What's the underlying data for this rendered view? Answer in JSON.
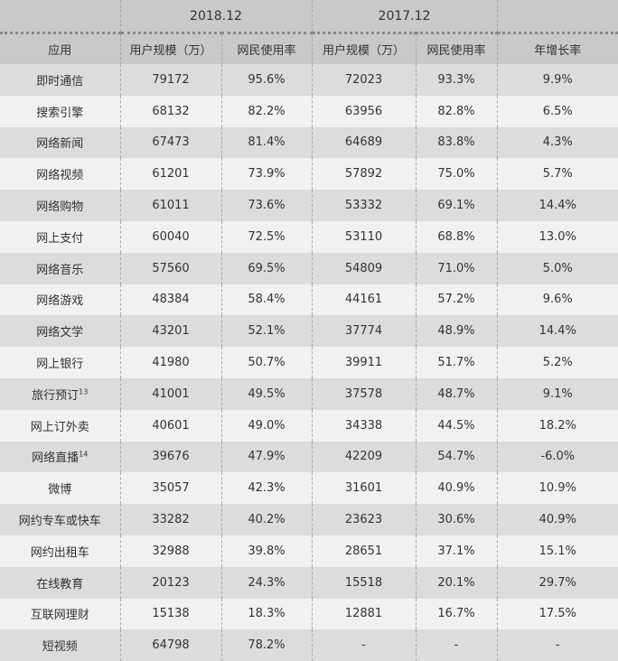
{
  "header": {
    "group1": "2018.12",
    "group2": "2017.12",
    "columns": [
      "应用",
      "用户规模（万）",
      "网民使用率",
      "用户规模（万）",
      "网民使用率",
      "年增长率"
    ]
  },
  "rows": [
    {
      "app": "即时通信",
      "sup": "",
      "u18": "79172",
      "r18": "95.6%",
      "u17": "72023",
      "r17": "93.3%",
      "g": "9.9%"
    },
    {
      "app": "搜索引擎",
      "sup": "",
      "u18": "68132",
      "r18": "82.2%",
      "u17": "63956",
      "r17": "82.8%",
      "g": "6.5%"
    },
    {
      "app": "网络新闻",
      "sup": "",
      "u18": "67473",
      "r18": "81.4%",
      "u17": "64689",
      "r17": "83.8%",
      "g": "4.3%"
    },
    {
      "app": "网络视频",
      "sup": "",
      "u18": "61201",
      "r18": "73.9%",
      "u17": "57892",
      "r17": "75.0%",
      "g": "5.7%"
    },
    {
      "app": "网络购物",
      "sup": "",
      "u18": "61011",
      "r18": "73.6%",
      "u17": "53332",
      "r17": "69.1%",
      "g": "14.4%"
    },
    {
      "app": "网上支付",
      "sup": "",
      "u18": "60040",
      "r18": "72.5%",
      "u17": "53110",
      "r17": "68.8%",
      "g": "13.0%"
    },
    {
      "app": "网络音乐",
      "sup": "",
      "u18": "57560",
      "r18": "69.5%",
      "u17": "54809",
      "r17": "71.0%",
      "g": "5.0%"
    },
    {
      "app": "网络游戏",
      "sup": "",
      "u18": "48384",
      "r18": "58.4%",
      "u17": "44161",
      "r17": "57.2%",
      "g": "9.6%"
    },
    {
      "app": "网络文学",
      "sup": "",
      "u18": "43201",
      "r18": "52.1%",
      "u17": "37774",
      "r17": "48.9%",
      "g": "14.4%"
    },
    {
      "app": "网上银行",
      "sup": "",
      "u18": "41980",
      "r18": "50.7%",
      "u17": "39911",
      "r17": "51.7%",
      "g": "5.2%"
    },
    {
      "app": "旅行预订",
      "sup": "13",
      "u18": "41001",
      "r18": "49.5%",
      "u17": "37578",
      "r17": "48.7%",
      "g": "9.1%"
    },
    {
      "app": "网上订外卖",
      "sup": "",
      "u18": "40601",
      "r18": "49.0%",
      "u17": "34338",
      "r17": "44.5%",
      "g": "18.2%"
    },
    {
      "app": "网络直播",
      "sup": "14",
      "u18": "39676",
      "r18": "47.9%",
      "u17": "42209",
      "r17": "54.7%",
      "g": "-6.0%"
    },
    {
      "app": "微博",
      "sup": "",
      "u18": "35057",
      "r18": "42.3%",
      "u17": "31601",
      "r17": "40.9%",
      "g": "10.9%"
    },
    {
      "app": "网约专车或快车",
      "sup": "",
      "u18": "33282",
      "r18": "40.2%",
      "u17": "23623",
      "r17": "30.6%",
      "g": "40.9%"
    },
    {
      "app": "网约出租车",
      "sup": "",
      "u18": "32988",
      "r18": "39.8%",
      "u17": "28651",
      "r17": "37.1%",
      "g": "15.1%"
    },
    {
      "app": "在线教育",
      "sup": "",
      "u18": "20123",
      "r18": "24.3%",
      "u17": "15518",
      "r17": "20.1%",
      "g": "29.7%"
    },
    {
      "app": "互联网理财",
      "sup": "",
      "u18": "15138",
      "r18": "18.3%",
      "u17": "12881",
      "r17": "16.7%",
      "g": "17.5%"
    },
    {
      "app": "短视频",
      "sup": "",
      "u18": "64798",
      "r18": "78.2%",
      "u17": "-",
      "r17": "-",
      "g": "-"
    }
  ]
}
